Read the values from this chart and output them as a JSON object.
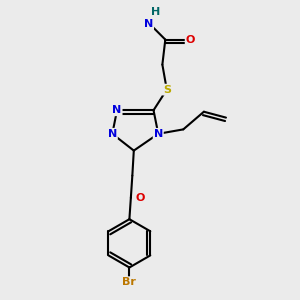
{
  "bg_color": "#ebebeb",
  "atom_colors": {
    "C": "#000000",
    "N": "#0000dd",
    "O": "#dd0000",
    "S": "#bbaa00",
    "Br": "#bb7700",
    "H": "#006666"
  }
}
